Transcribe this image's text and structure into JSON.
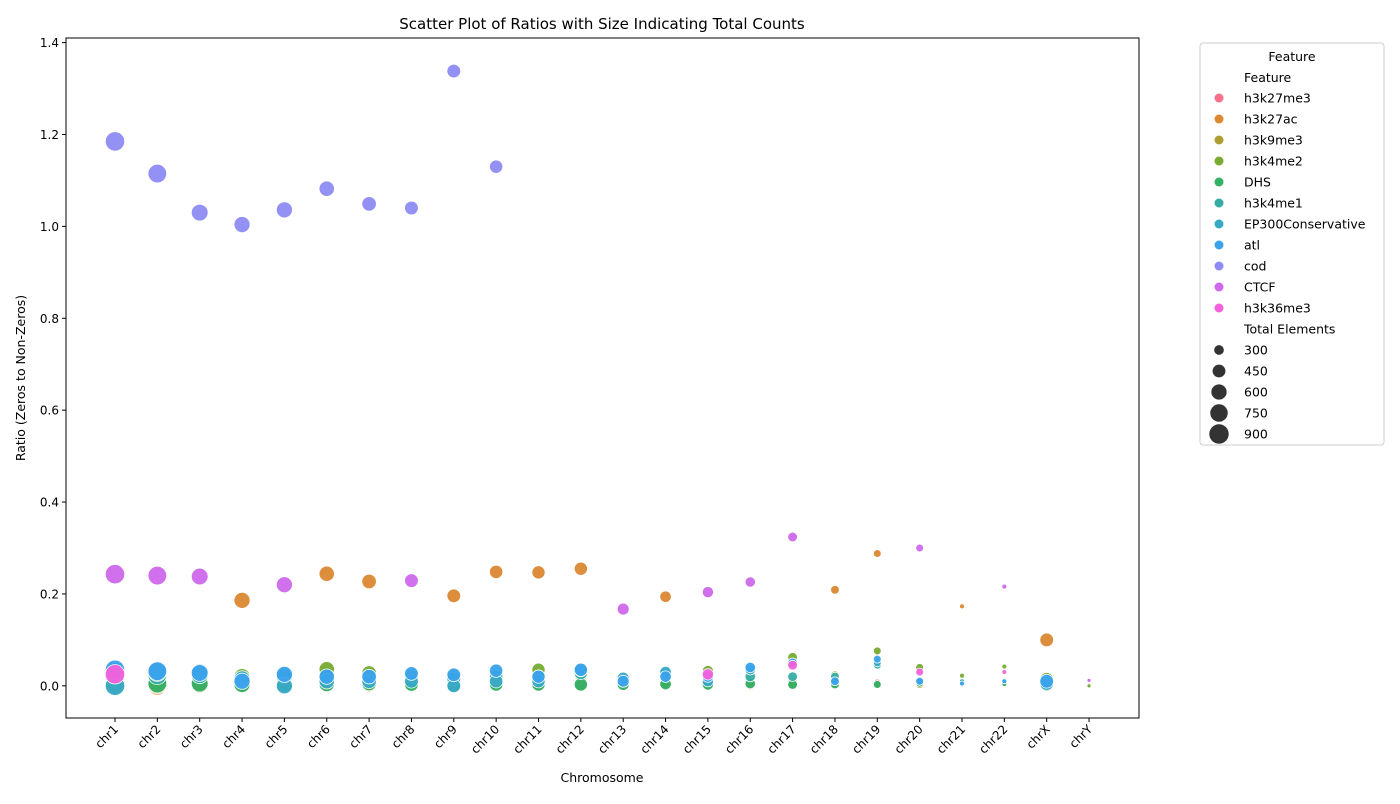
{
  "chart_data": {
    "type": "scatter",
    "title": "Scatter Plot of Ratios with Size Indicating Total Counts",
    "xlabel": "Chromosome",
    "ylabel": "Ratio (Zeros to Non-Zeros)",
    "categories": [
      "chr1",
      "chr2",
      "chr3",
      "chr4",
      "chr5",
      "chr6",
      "chr7",
      "chr8",
      "chr9",
      "chr10",
      "chr11",
      "chr12",
      "chr13",
      "chr14",
      "chr15",
      "chr16",
      "chr17",
      "chr18",
      "chr19",
      "chr20",
      "chr21",
      "chr22",
      "chrX",
      "chrY"
    ],
    "ylim": [
      -0.07,
      1.41
    ],
    "yticks": [
      "0.0",
      "0.2",
      "0.4",
      "0.6",
      "0.8",
      "1.0",
      "1.2",
      "1.4"
    ],
    "grid": false,
    "legend": {
      "title": "Feature",
      "placement": "outside right",
      "hue_title": "Feature",
      "size_title": "Total Elements",
      "size_entries": [
        {
          "label": "300",
          "value": 300
        },
        {
          "label": "450",
          "value": 450
        },
        {
          "label": "600",
          "value": 600
        },
        {
          "label": "750",
          "value": 750
        },
        {
          "label": "900",
          "value": 900
        }
      ]
    },
    "size_range": [
      150,
      1000
    ],
    "series": [
      {
        "name": "h3k27me3",
        "color": "#f77189",
        "points": [
          [
            "chr1",
            0.005,
            900
          ],
          [
            "chr2",
            0.004,
            840
          ],
          [
            "chr3",
            0.003,
            700
          ],
          [
            "chr4",
            0.003,
            650
          ],
          [
            "chr5",
            0.003,
            650
          ],
          [
            "chr6",
            0.025,
            600
          ],
          [
            "chr7",
            0.005,
            550
          ],
          [
            "chr8",
            0.004,
            500
          ],
          [
            "chr9",
            0.002,
            500
          ],
          [
            "chr10",
            0.02,
            480
          ],
          [
            "chr11",
            0.015,
            470
          ],
          [
            "chr12",
            0.005,
            470
          ],
          [
            "chr13",
            0.003,
            400
          ],
          [
            "chr14",
            0.003,
            380
          ],
          [
            "chr15",
            0.002,
            370
          ],
          [
            "chr16",
            0.005,
            330
          ],
          [
            "chr17",
            0.008,
            300
          ],
          [
            "chr18",
            0.002,
            260
          ],
          [
            "chr19",
            0.006,
            230
          ],
          [
            "chr20",
            0.003,
            230
          ],
          [
            "chr21",
            0.003,
            150
          ],
          [
            "chr22",
            0.003,
            150
          ],
          [
            "chrX",
            0.003,
            500
          ]
        ]
      },
      {
        "name": "h3k27ac",
        "color": "#dc8932",
        "points": [
          [
            "chr1",
            0.01,
            900
          ],
          [
            "chr2",
            0.0,
            840
          ],
          [
            "chr3",
            0.005,
            700
          ],
          [
            "chr4",
            0.186,
            650
          ],
          [
            "chr5",
            0.003,
            650
          ],
          [
            "chr6",
            0.244,
            600
          ],
          [
            "chr7",
            0.227,
            550
          ],
          [
            "chr8",
            0.005,
            500
          ],
          [
            "chr9",
            0.196,
            500
          ],
          [
            "chr10",
            0.248,
            480
          ],
          [
            "chr11",
            0.247,
            470
          ],
          [
            "chr12",
            0.255,
            470
          ],
          [
            "chr13",
            0.003,
            400
          ],
          [
            "chr14",
            0.194,
            380
          ],
          [
            "chr15",
            0.003,
            370
          ],
          [
            "chr16",
            0.003,
            330
          ],
          [
            "chr17",
            0.003,
            300
          ],
          [
            "chr18",
            0.209,
            260
          ],
          [
            "chr19",
            0.288,
            230
          ],
          [
            "chr20",
            0.003,
            230
          ],
          [
            "chr21",
            0.173,
            150
          ],
          [
            "chr22",
            0.003,
            150
          ],
          [
            "chrX",
            0.1,
            500
          ],
          [
            "chrY",
            0.003,
            100
          ]
        ]
      },
      {
        "name": "h3k9me3",
        "color": "#ae9d31",
        "points": [
          [
            "chr1",
            0.003,
            900
          ],
          [
            "chr2",
            0.003,
            840
          ],
          [
            "chr3",
            0.003,
            700
          ],
          [
            "chr4",
            0.002,
            650
          ],
          [
            "chr5",
            0.003,
            650
          ],
          [
            "chr6",
            0.003,
            600
          ],
          [
            "chr7",
            0.003,
            550
          ],
          [
            "chr8",
            0.003,
            500
          ],
          [
            "chr9",
            0.003,
            500
          ],
          [
            "chr10",
            0.003,
            480
          ],
          [
            "chr11",
            0.002,
            470
          ],
          [
            "chr12",
            0.003,
            470
          ],
          [
            "chr13",
            0.003,
            400
          ],
          [
            "chr14",
            0.003,
            380
          ],
          [
            "chr15",
            0.002,
            370
          ],
          [
            "chr16",
            0.003,
            330
          ],
          [
            "chr17",
            0.002,
            300
          ],
          [
            "chr18",
            0.002,
            260
          ],
          [
            "chr19",
            0.003,
            230
          ],
          [
            "chr20",
            0.003,
            230
          ],
          [
            "chr21",
            0.003,
            150
          ],
          [
            "chr22",
            0.003,
            150
          ],
          [
            "chrX",
            0.002,
            500
          ],
          [
            "chrY",
            0.001,
            100
          ]
        ]
      },
      {
        "name": "h3k4me2",
        "color": "#77ab31",
        "points": [
          [
            "chr1",
            0.03,
            900
          ],
          [
            "chr2",
            0.025,
            840
          ],
          [
            "chr3",
            0.025,
            700
          ],
          [
            "chr4",
            0.02,
            650
          ],
          [
            "chr5",
            0.02,
            650
          ],
          [
            "chr6",
            0.036,
            600
          ],
          [
            "chr7",
            0.028,
            550
          ],
          [
            "chr8",
            0.02,
            500
          ],
          [
            "chr9",
            0.02,
            500
          ],
          [
            "chr10",
            0.02,
            480
          ],
          [
            "chr11",
            0.035,
            470
          ],
          [
            "chr12",
            0.025,
            470
          ],
          [
            "chr13",
            0.01,
            400
          ],
          [
            "chr14",
            0.02,
            380
          ],
          [
            "chr15",
            0.032,
            370
          ],
          [
            "chr16",
            0.03,
            330
          ],
          [
            "chr17",
            0.062,
            300
          ],
          [
            "chr18",
            0.023,
            260
          ],
          [
            "chr19",
            0.076,
            230
          ],
          [
            "chr20",
            0.04,
            230
          ],
          [
            "chr21",
            0.022,
            150
          ],
          [
            "chr22",
            0.042,
            150
          ],
          [
            "chrX",
            0.014,
            500
          ],
          [
            "chrY",
            0.0,
            100
          ]
        ]
      },
      {
        "name": "DHS",
        "color": "#33b166",
        "points": [
          [
            "chr1",
            0.005,
            900
          ],
          [
            "chr2",
            0.005,
            840
          ],
          [
            "chr3",
            0.005,
            700
          ],
          [
            "chr4",
            0.003,
            650
          ],
          [
            "chr5",
            0.003,
            650
          ],
          [
            "chr6",
            0.004,
            600
          ],
          [
            "chr7",
            0.005,
            550
          ],
          [
            "chr8",
            0.003,
            500
          ],
          [
            "chr9",
            0.002,
            500
          ],
          [
            "chr10",
            0.003,
            480
          ],
          [
            "chr11",
            0.003,
            470
          ],
          [
            "chr12",
            0.003,
            470
          ],
          [
            "chr13",
            0.003,
            400
          ],
          [
            "chr14",
            0.004,
            380
          ],
          [
            "chr15",
            0.003,
            370
          ],
          [
            "chr16",
            0.005,
            330
          ],
          [
            "chr17",
            0.003,
            300
          ],
          [
            "chr18",
            0.003,
            260
          ],
          [
            "chr19",
            0.003,
            230
          ],
          [
            "chr20",
            0.006,
            230
          ],
          [
            "chr21",
            0.003,
            150
          ],
          [
            "chr22",
            0.004,
            150
          ],
          [
            "chrX",
            0.003,
            500
          ]
        ]
      },
      {
        "name": "h3k4me1",
        "color": "#36ada4",
        "points": [
          [
            "chr1",
            0.02,
            900
          ],
          [
            "chr2",
            0.023,
            840
          ],
          [
            "chr3",
            0.023,
            700
          ],
          [
            "chr4",
            0.015,
            650
          ],
          [
            "chr5",
            0.02,
            650
          ],
          [
            "chr6",
            0.02,
            600
          ],
          [
            "chr7",
            0.02,
            550
          ],
          [
            "chr8",
            0.02,
            500
          ],
          [
            "chr9",
            0.015,
            500
          ],
          [
            "chr10",
            0.02,
            480
          ],
          [
            "chr11",
            0.02,
            470
          ],
          [
            "chr12",
            0.028,
            470
          ],
          [
            "chr13",
            0.01,
            400
          ],
          [
            "chr14",
            0.025,
            380
          ],
          [
            "chr15",
            0.02,
            370
          ],
          [
            "chr16",
            0.02,
            330
          ],
          [
            "chr17",
            0.02,
            300
          ],
          [
            "chr18",
            0.02,
            260
          ],
          [
            "chr19",
            0.045,
            230
          ],
          [
            "chr20",
            0.01,
            230
          ],
          [
            "chr21",
            0.01,
            150
          ],
          [
            "chr22",
            0.01,
            150
          ],
          [
            "chrX",
            0.01,
            500
          ]
        ]
      },
      {
        "name": "EP300Conservative",
        "color": "#38a9c5",
        "points": [
          [
            "chr1",
            0.0,
            900
          ],
          [
            "chr2",
            0.03,
            840
          ],
          [
            "chr3",
            0.03,
            700
          ],
          [
            "chr4",
            0.015,
            650
          ],
          [
            "chr5",
            0.0,
            650
          ],
          [
            "chr6",
            0.01,
            600
          ],
          [
            "chr7",
            0.01,
            550
          ],
          [
            "chr8",
            0.01,
            500
          ],
          [
            "chr9",
            0.0,
            500
          ],
          [
            "chr10",
            0.01,
            480
          ],
          [
            "chr11",
            0.01,
            470
          ],
          [
            "chr12",
            0.034,
            470
          ],
          [
            "chr13",
            0.017,
            400
          ],
          [
            "chr14",
            0.03,
            380
          ],
          [
            "chr15",
            0.01,
            370
          ],
          [
            "chr16",
            0.035,
            330
          ],
          [
            "chr17",
            0.05,
            300
          ],
          [
            "chr18",
            0.01,
            260
          ],
          [
            "chr19",
            0.05,
            230
          ],
          [
            "chr20",
            0.01,
            230
          ],
          [
            "chr21",
            0.005,
            150
          ],
          [
            "chr22",
            0.01,
            150
          ],
          [
            "chrX",
            0.005,
            500
          ]
        ]
      },
      {
        "name": "atl",
        "color": "#3ba3ec",
        "points": [
          [
            "chr1",
            0.035,
            900
          ],
          [
            "chr2",
            0.032,
            840
          ],
          [
            "chr3",
            0.028,
            700
          ],
          [
            "chr4",
            0.01,
            650
          ],
          [
            "chr5",
            0.025,
            650
          ],
          [
            "chr6",
            0.02,
            600
          ],
          [
            "chr7",
            0.02,
            550
          ],
          [
            "chr8",
            0.027,
            500
          ],
          [
            "chr9",
            0.024,
            500
          ],
          [
            "chr10",
            0.033,
            480
          ],
          [
            "chr11",
            0.02,
            470
          ],
          [
            "chr12",
            0.035,
            470
          ],
          [
            "chr13",
            0.01,
            400
          ],
          [
            "chr14",
            0.02,
            380
          ],
          [
            "chr15",
            0.02,
            370
          ],
          [
            "chr16",
            0.04,
            330
          ],
          [
            "chr17",
            0.05,
            300
          ],
          [
            "chr18",
            0.01,
            260
          ],
          [
            "chr19",
            0.058,
            230
          ],
          [
            "chr20",
            0.01,
            230
          ],
          [
            "chr21",
            0.005,
            150
          ],
          [
            "chr22",
            0.01,
            150
          ],
          [
            "chrX",
            0.01,
            500
          ]
        ]
      },
      {
        "name": "cod",
        "color": "#8e8cf4",
        "points": [
          [
            "chr1",
            1.185,
            900
          ],
          [
            "chr2",
            1.115,
            840
          ],
          [
            "chr3",
            1.03,
            700
          ],
          [
            "chr4",
            1.004,
            650
          ],
          [
            "chr5",
            1.036,
            650
          ],
          [
            "chr6",
            1.082,
            600
          ],
          [
            "chr7",
            1.049,
            550
          ],
          [
            "chr8",
            1.04,
            500
          ],
          [
            "chr9",
            1.338,
            500
          ],
          [
            "chr10",
            1.13,
            480
          ]
        ]
      },
      {
        "name": "CTCF",
        "color": "#ce69ec",
        "points": [
          [
            "chr1",
            0.243,
            900
          ],
          [
            "chr2",
            0.24,
            840
          ],
          [
            "chr3",
            0.238,
            700
          ],
          [
            "chr5",
            0.22,
            650
          ],
          [
            "chr8",
            0.229,
            500
          ],
          [
            "chr13",
            0.167,
            400
          ],
          [
            "chr15",
            0.204,
            370
          ],
          [
            "chr16",
            0.226,
            330
          ],
          [
            "chr17",
            0.324,
            300
          ],
          [
            "chr20",
            0.3,
            230
          ],
          [
            "chr22",
            0.216,
            150
          ],
          [
            "chrY",
            0.012,
            100
          ]
        ]
      },
      {
        "name": "h3k36me3",
        "color": "#f561dd",
        "points": [
          [
            "chr1",
            0.025,
            900
          ],
          [
            "chr15",
            0.025,
            370
          ],
          [
            "chr17",
            0.045,
            300
          ],
          [
            "chr20",
            0.03,
            230
          ],
          [
            "chr22",
            0.03,
            150
          ]
        ]
      }
    ]
  }
}
